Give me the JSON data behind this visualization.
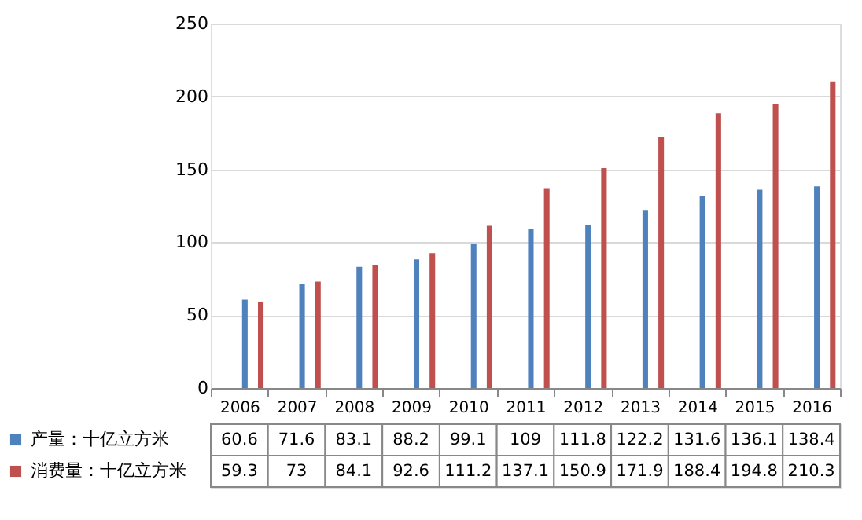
{
  "chart_data": {
    "type": "bar",
    "categories": [
      "2006",
      "2007",
      "2008",
      "2009",
      "2010",
      "2011",
      "2012",
      "2013",
      "2014",
      "2015",
      "2016"
    ],
    "series": [
      {
        "name": "产量：十亿立方米",
        "color": "#4f81bd",
        "values": [
          60.6,
          71.6,
          83.1,
          88.2,
          99.1,
          109,
          111.8,
          122.2,
          131.6,
          136.1,
          138.4
        ]
      },
      {
        "name": "消费量：十亿立方米",
        "color": "#c0504d",
        "values": [
          59.3,
          73,
          84.1,
          92.6,
          111.2,
          137.1,
          150.9,
          171.9,
          188.4,
          194.8,
          210.3
        ]
      }
    ],
    "ylim": [
      0,
      250
    ],
    "yticks": [
      0,
      50,
      100,
      150,
      200,
      250
    ],
    "grid": "y",
    "legend": "bottom",
    "data_labels": true
  }
}
